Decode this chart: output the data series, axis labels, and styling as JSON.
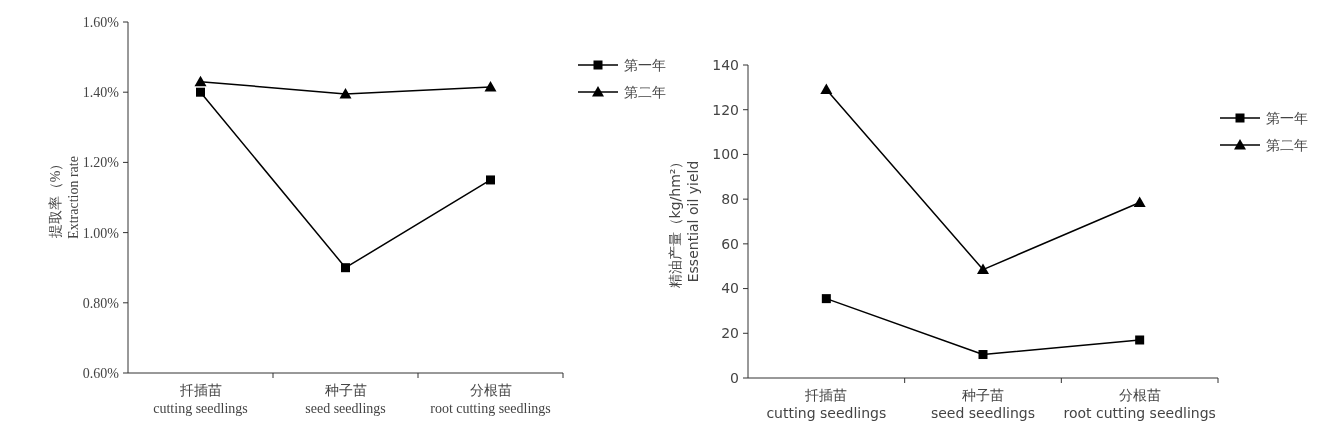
{
  "chart_data": [
    {
      "type": "line",
      "categories": [
        "扦插苗\ncutting seedlings",
        "种子苗\nseed seedlings",
        "分根苗\nroot cutting seedlings"
      ],
      "ylabel": "提取率（%）\nExtraction rate",
      "ylim": [
        0.6,
        1.6
      ],
      "yticks": [
        {
          "value": 0.6,
          "label": "0.60%"
        },
        {
          "value": 0.8,
          "label": "0.80%"
        },
        {
          "value": 1.0,
          "label": "1.00%"
        },
        {
          "value": 1.2,
          "label": "1.20%"
        },
        {
          "value": 1.4,
          "label": "1.40%"
        },
        {
          "value": 1.6,
          "label": "1.60%"
        }
      ],
      "legend": "top right",
      "grid": false,
      "series": [
        {
          "name": "第一年",
          "color": "#000000",
          "marker": "square",
          "values": [
            1.4,
            0.9,
            1.15
          ]
        },
        {
          "name": "第二年",
          "color": "#000000",
          "marker": "triangle",
          "values": [
            1.43,
            1.395,
            1.415
          ]
        }
      ]
    },
    {
      "type": "line",
      "categories": [
        "扦插苗\ncutting seedlings",
        "种子苗\nseed seedlings",
        "分根苗\nroot cutting seedlings"
      ],
      "ylabel": "精油产量（kg/hm²）\nEssential oil yield",
      "ylim": [
        0,
        140
      ],
      "yticks": [
        0,
        20,
        40,
        60,
        80,
        100,
        120,
        140
      ],
      "legend": "top right",
      "grid": false,
      "series": [
        {
          "name": "第一年",
          "color": "#000000",
          "marker": "square",
          "values": [
            35.5,
            10.5,
            17
          ]
        },
        {
          "name": "第二年",
          "color": "#000000",
          "marker": "triangle",
          "values": [
            129,
            48.5,
            78.5
          ]
        }
      ]
    }
  ]
}
